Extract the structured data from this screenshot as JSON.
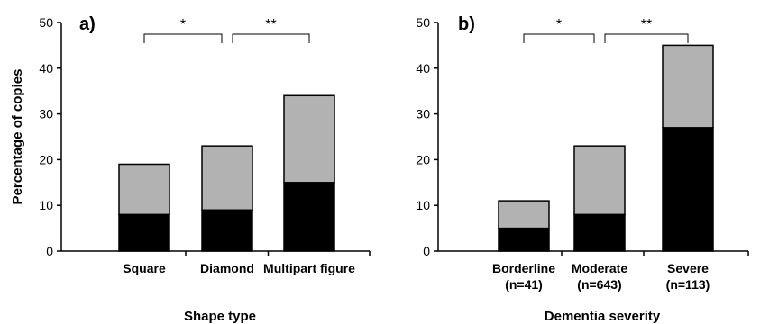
{
  "chart_data": [
    {
      "type": "bar",
      "stacked": true,
      "panel_label": "a)",
      "categories": [
        "Square",
        "Diamond",
        "Multipart figure"
      ],
      "xlabel": "Shape type",
      "ylabel": "Percentage of copies",
      "ylim": [
        0,
        50
      ],
      "yticks": [
        0,
        10,
        20,
        30,
        40,
        50
      ],
      "series": [
        {
          "values": [
            8,
            9,
            15
          ],
          "color": "#000000"
        },
        {
          "values": [
            11,
            14,
            19
          ],
          "color": "#b2b2b2"
        }
      ],
      "totals": [
        19,
        23,
        34
      ],
      "significance": [
        {
          "from": 0,
          "to": 1,
          "label": "*"
        },
        {
          "from": 1,
          "to": 2,
          "label": "**"
        }
      ]
    },
    {
      "type": "bar",
      "stacked": true,
      "panel_label": "b)",
      "categories": [
        "Borderline",
        "Moderate",
        "Severe"
      ],
      "category_sublabels": [
        "(n=41)",
        "(n=643)",
        "(n=113)"
      ],
      "xlabel": "Dementia severity",
      "ylabel": "",
      "ylim": [
        0,
        50
      ],
      "yticks": [
        0,
        10,
        20,
        30,
        40,
        50
      ],
      "series": [
        {
          "values": [
            5,
            8,
            27
          ],
          "color": "#000000"
        },
        {
          "values": [
            6,
            15,
            18
          ],
          "color": "#b2b2b2"
        }
      ],
      "totals": [
        11,
        23,
        45
      ],
      "significance": [
        {
          "from": 0,
          "to": 1,
          "label": "*"
        },
        {
          "from": 1,
          "to": 2,
          "label": "**"
        }
      ]
    }
  ]
}
